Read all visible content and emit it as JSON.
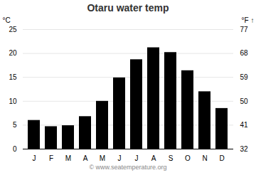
{
  "chart_data": {
    "type": "bar",
    "title": "Otaru water temp",
    "categories": [
      "J",
      "F",
      "M",
      "A",
      "M",
      "J",
      "J",
      "A",
      "S",
      "O",
      "N",
      "D"
    ],
    "values": [
      6.0,
      4.7,
      4.9,
      6.8,
      10.0,
      14.9,
      18.7,
      21.2,
      20.2,
      16.4,
      12.0,
      8.5
    ],
    "ylim": [
      0,
      25
    ],
    "yticks": [
      0,
      5,
      10,
      15,
      20,
      25
    ],
    "ylabel": "°C",
    "y2lim": [
      32,
      77
    ],
    "y2ticks": [
      32,
      41,
      50,
      59,
      68,
      77
    ],
    "y2label": "°F",
    "grid": true,
    "caption": "© www.seatemperature.org"
  }
}
